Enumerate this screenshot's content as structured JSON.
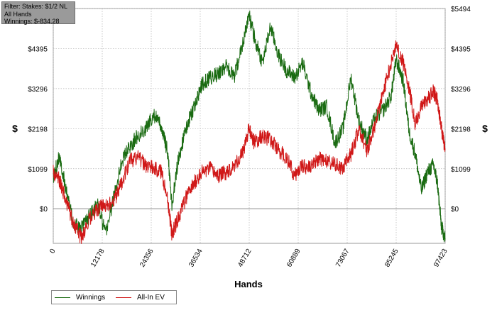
{
  "filter_box": {
    "line1": "Filter: Stakes: $1/2 NL",
    "line2": "All Hands",
    "line3": "Winnings: $-834.28"
  },
  "chart_data": {
    "type": "line",
    "xlabel": "Hands",
    "ylabel": "$",
    "xlim": [
      0,
      97423
    ],
    "ylim": [
      -950,
      5494
    ],
    "x_ticks": [
      0,
      12178,
      24356,
      36534,
      48712,
      60889,
      73067,
      85245,
      97423
    ],
    "x_tick_labels": [
      "0",
      "12178",
      "24356",
      "36534",
      "48712",
      "60889",
      "73067",
      "85245",
      "97423"
    ],
    "y_ticks": [
      0,
      1099,
      2198,
      3296,
      4395,
      5494
    ],
    "y_tick_labels": [
      "$0",
      "$1099",
      "$2198",
      "$3296",
      "$4395",
      "$5494"
    ],
    "grid": true,
    "legend_position": "bottom-left",
    "series": [
      {
        "name": "Winnings",
        "color": "#1a6b12",
        "x": [
          0,
          1500,
          3000,
          5000,
          7000,
          9000,
          11000,
          13000,
          15000,
          17000,
          19000,
          21000,
          23000,
          25000,
          27000,
          28500,
          29500,
          31000,
          33000,
          35000,
          37000,
          39000,
          41000,
          43000,
          45000,
          47000,
          48712,
          50000,
          52000,
          54000,
          56000,
          58000,
          60000,
          62000,
          64000,
          66000,
          68000,
          70000,
          72000,
          74000,
          76000,
          78000,
          80000,
          82000,
          84000,
          85245,
          87000,
          88500,
          90000,
          91500,
          93000,
          94500,
          95500,
          96500,
          97423
        ],
        "y": [
          800,
          1500,
          600,
          -400,
          -550,
          -200,
          150,
          -700,
          300,
          1300,
          1700,
          2000,
          2200,
          2600,
          2200,
          1500,
          100,
          1300,
          2200,
          2800,
          3400,
          3600,
          3700,
          3900,
          3600,
          4500,
          5300,
          4700,
          4000,
          5000,
          4200,
          3800,
          3600,
          4000,
          3200,
          2700,
          2800,
          1800,
          2200,
          3600,
          2400,
          1900,
          2500,
          2700,
          3100,
          4100,
          3500,
          2100,
          1500,
          500,
          1000,
          1200,
          700,
          -500,
          -800
        ]
      },
      {
        "name": "All-In EV",
        "color": "#d01818",
        "x": [
          0,
          1500,
          3000,
          5000,
          7000,
          9000,
          11000,
          13000,
          15000,
          17000,
          19000,
          21000,
          23000,
          25000,
          27000,
          28500,
          29500,
          31000,
          33000,
          35000,
          37000,
          39000,
          41000,
          43000,
          45000,
          47000,
          48712,
          50000,
          52000,
          54000,
          56000,
          58000,
          60000,
          62000,
          64000,
          66000,
          68000,
          70000,
          72000,
          74000,
          76000,
          78000,
          80000,
          82000,
          84000,
          85245,
          87000,
          88500,
          90000,
          91500,
          93000,
          94500,
          95500,
          96500,
          97423
        ],
        "y": [
          1000,
          800,
          300,
          -400,
          -800,
          -300,
          0,
          100,
          200,
          700,
          1300,
          1400,
          1200,
          1100,
          1000,
          200,
          -700,
          -300,
          300,
          700,
          1000,
          1100,
          900,
          1000,
          1200,
          1500,
          2200,
          1800,
          2000,
          1900,
          1600,
          1400,
          900,
          1200,
          1100,
          1400,
          1300,
          1200,
          1100,
          1500,
          2200,
          1600,
          2300,
          3200,
          4000,
          4500,
          4000,
          3300,
          2300,
          2800,
          3000,
          3200,
          3000,
          2200,
          1600
        ]
      }
    ]
  }
}
